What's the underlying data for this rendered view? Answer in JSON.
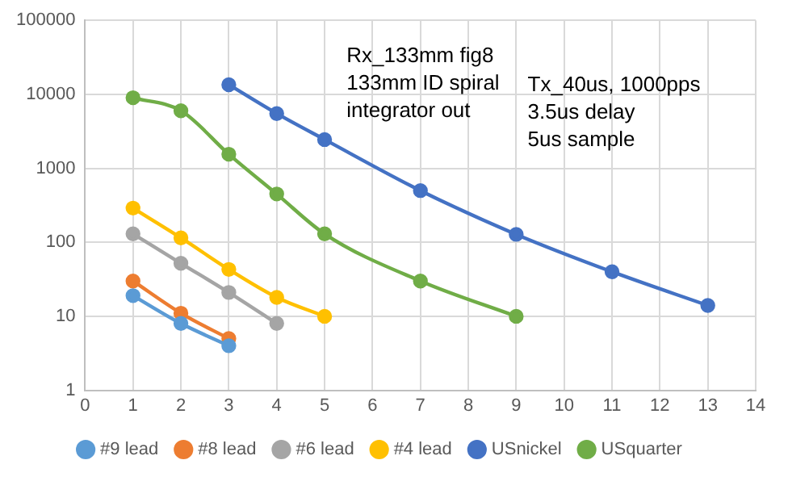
{
  "chart_data": {
    "type": "line",
    "xlim": [
      0,
      14
    ],
    "xticks": [
      0,
      1,
      2,
      3,
      4,
      5,
      6,
      7,
      8,
      9,
      10,
      11,
      12,
      13,
      14
    ],
    "ylim": [
      1,
      100000
    ],
    "yticks": [
      1,
      10,
      100,
      1000,
      10000,
      100000
    ],
    "log": "y",
    "grid": true,
    "legend": "bottom",
    "marker": "circle",
    "line_style": "solid",
    "annotations": [
      "Rx_133mm fig8\n133mm ID spiral\nintegrator out",
      "Tx_40us, 1000pps\n3.5us delay\n5us sample"
    ],
    "series": [
      {
        "name": "#9 lead",
        "color": "#5b9bd5",
        "x": [
          1,
          2,
          3
        ],
        "values": [
          19,
          8,
          4
        ]
      },
      {
        "name": "#8 lead",
        "color": "#ed7d31",
        "x": [
          1,
          2,
          3
        ],
        "values": [
          30,
          11,
          5
        ]
      },
      {
        "name": "#6 lead",
        "color": "#a5a5a5",
        "x": [
          1,
          2,
          3,
          4
        ],
        "values": [
          130,
          52,
          21,
          8
        ]
      },
      {
        "name": "#4 lead",
        "color": "#ffc000",
        "x": [
          1,
          2,
          3,
          4,
          5
        ],
        "values": [
          290,
          115,
          43,
          18,
          10
        ]
      },
      {
        "name": "USnickel",
        "color": "#4472c4",
        "x": [
          3,
          4,
          5,
          7,
          9,
          11,
          13
        ],
        "values": [
          13500,
          5500,
          2450,
          500,
          128,
          40,
          14
        ]
      },
      {
        "name": "USquarter",
        "color": "#70ad47",
        "x": [
          1,
          2,
          3,
          4,
          5,
          7,
          9
        ],
        "values": [
          9000,
          6000,
          1550,
          450,
          130,
          30,
          10
        ]
      }
    ]
  }
}
